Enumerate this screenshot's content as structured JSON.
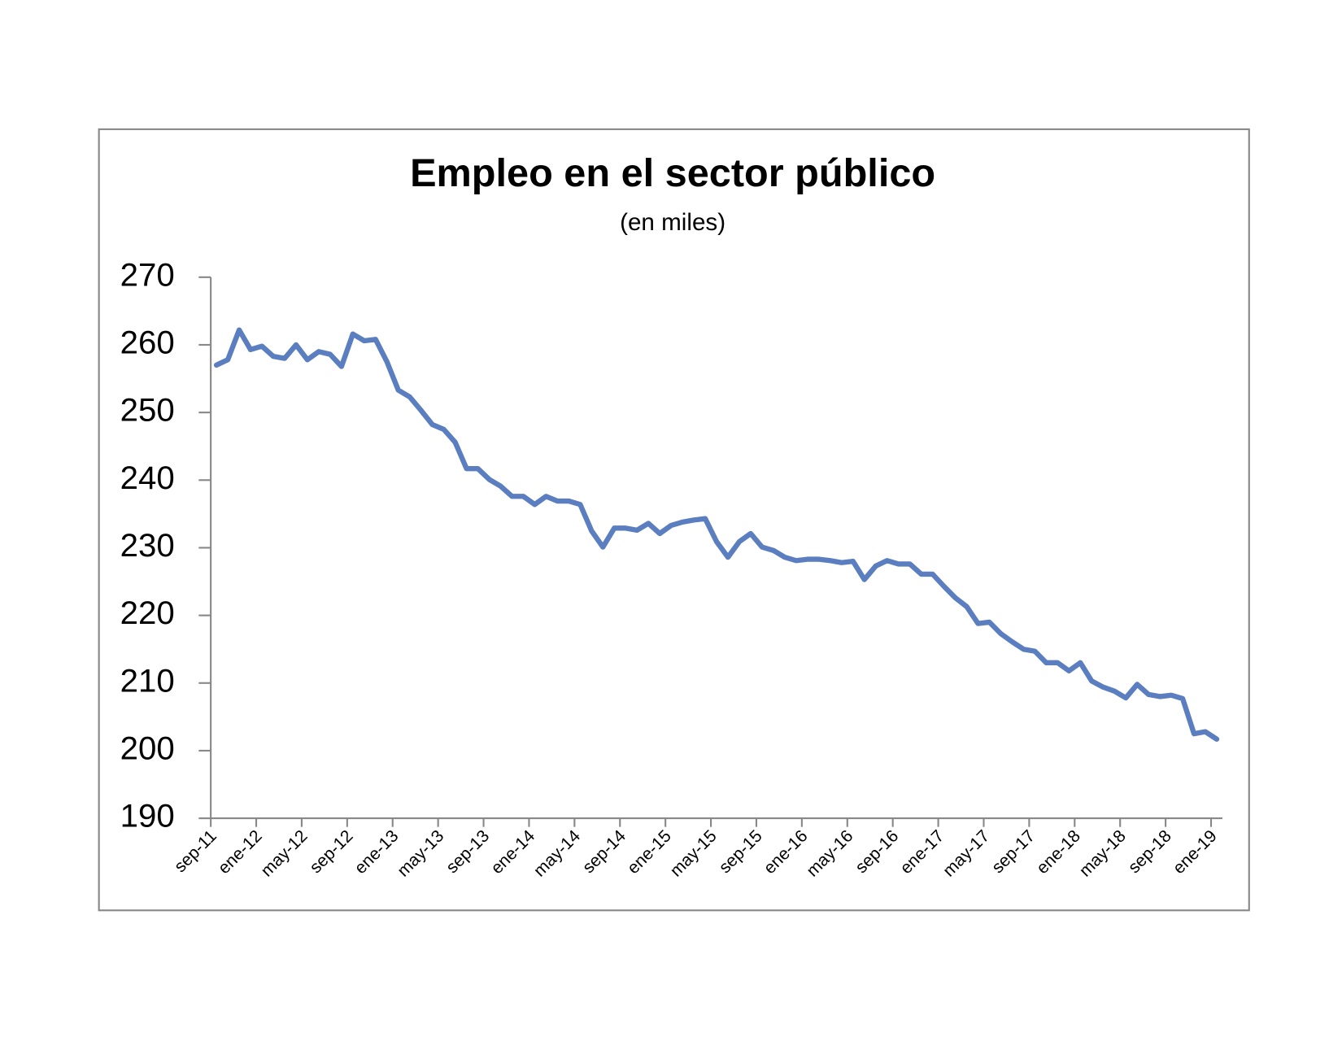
{
  "chart_data": {
    "type": "line",
    "title": "Empleo en el sector público",
    "subtitle": "(en miles)",
    "categories": [
      "sep-11",
      null,
      null,
      null,
      "ene-12",
      null,
      null,
      null,
      "may-12",
      null,
      null,
      null,
      "sep-12",
      null,
      null,
      null,
      "ene-13",
      null,
      null,
      null,
      "may-13",
      null,
      null,
      null,
      "sep-13",
      null,
      null,
      null,
      "ene-14",
      null,
      null,
      null,
      "may-14",
      null,
      null,
      null,
      "sep-14",
      null,
      null,
      null,
      "ene-15",
      null,
      null,
      null,
      "may-15",
      null,
      null,
      null,
      "sep-15",
      null,
      null,
      null,
      "ene-16",
      null,
      null,
      null,
      "may-16",
      null,
      null,
      null,
      "sep-16",
      null,
      null,
      null,
      "ene-17",
      null,
      null,
      null,
      "may-17",
      null,
      null,
      null,
      "sep-17",
      null,
      null,
      null,
      "ene-18",
      null,
      null,
      null,
      "may-18",
      null,
      null,
      null,
      "sep-18",
      null,
      null,
      null,
      "ene-19"
    ],
    "series": [
      {
        "color": "#5a7ebf",
        "values": [
          257.0,
          257.8,
          262.2,
          259.3,
          259.8,
          258.3,
          258.0,
          260.0,
          257.8,
          259.0,
          258.6,
          256.8,
          261.6,
          260.6,
          260.8,
          257.5,
          253.3,
          252.3,
          250.3,
          248.2,
          247.5,
          245.6,
          241.7,
          241.7,
          240.1,
          239.1,
          237.6,
          237.6,
          236.4,
          237.6,
          236.9,
          236.9,
          236.4,
          232.5,
          230.1,
          232.9,
          232.9,
          232.6,
          233.6,
          232.1,
          233.3,
          233.8,
          234.1,
          234.3,
          230.9,
          228.6,
          230.9,
          232.1,
          230.1,
          229.6,
          228.6,
          228.1,
          228.3,
          228.3,
          228.1,
          227.8,
          228.0,
          225.3,
          227.3,
          228.1,
          227.6,
          227.6,
          226.1,
          226.1,
          224.3,
          222.6,
          221.3,
          218.8,
          219.0,
          217.3,
          216.1,
          215.0,
          214.7,
          213.0,
          213.0,
          211.8,
          213.0,
          210.3,
          209.4,
          208.8,
          207.8,
          209.8,
          208.3,
          208.0,
          208.2,
          207.7,
          202.5,
          202.8,
          201.7
        ]
      }
    ],
    "ylim": [
      190,
      270
    ],
    "yticks": [
      190,
      200,
      210,
      220,
      230,
      240,
      250,
      260,
      270
    ]
  }
}
